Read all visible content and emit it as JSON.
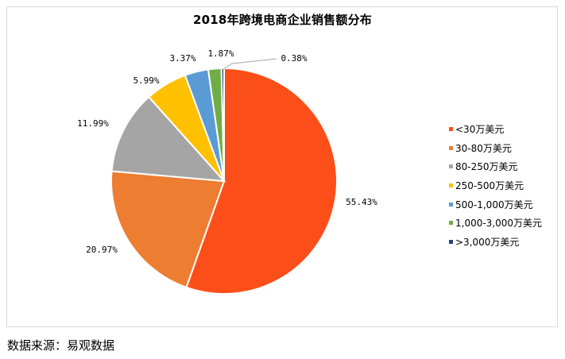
{
  "chart_data": {
    "type": "pie",
    "title": "2018年跨境电商企业销售额分布",
    "categories": [
      "<30万美元",
      "30-80万美元",
      "80-250万美元",
      "250-500万美元",
      "500-1,000万美元",
      "1,000-3,000万美元",
      ">3,000万美元"
    ],
    "values": [
      55.43,
      20.97,
      11.99,
      5.99,
      3.37,
      1.87,
      0.38
    ],
    "labels": [
      "55.43%",
      "20.97%",
      "11.99%",
      "5.99%",
      "3.37%",
      "1.87%",
      "0.38%"
    ],
    "colors": [
      "#FC4E19",
      "#ED7D31",
      "#A5A5A5",
      "#FFC000",
      "#5B9BD5",
      "#70AD47",
      "#264478"
    ],
    "start_angle": "12 o'clock",
    "direction": "clockwise",
    "legend_position": "right",
    "unit": "%"
  },
  "source": "数据来源：易观数据"
}
